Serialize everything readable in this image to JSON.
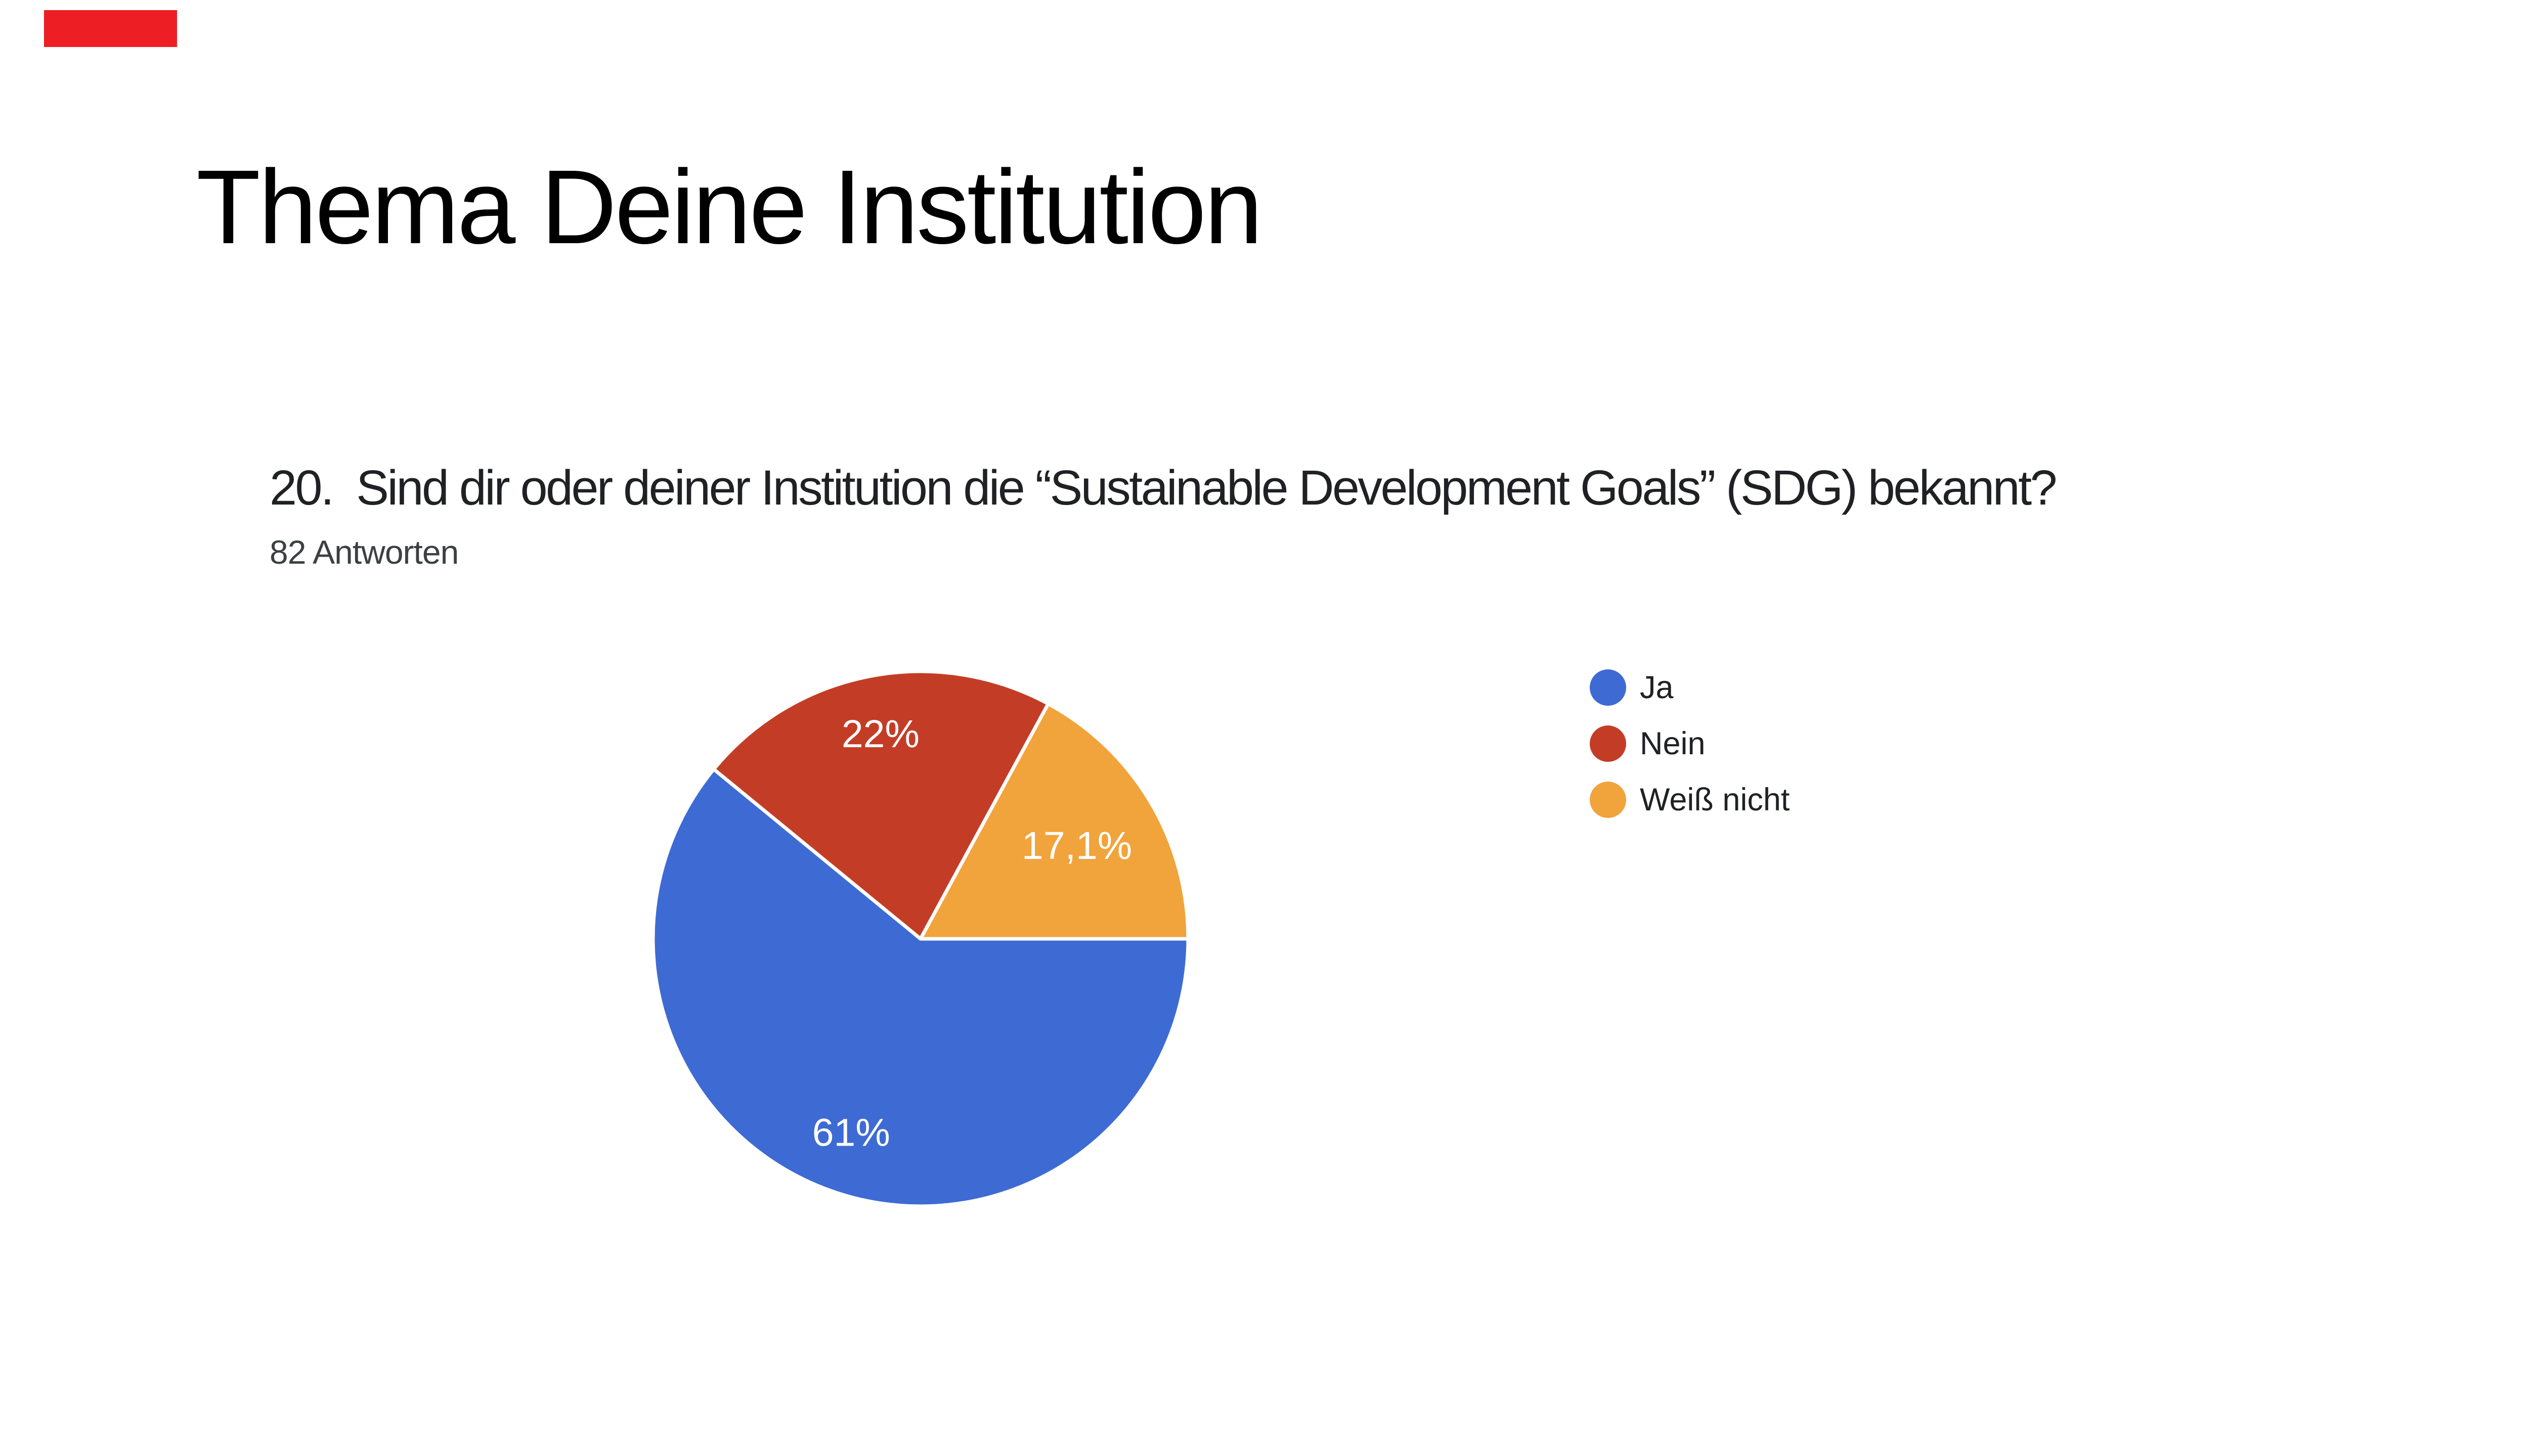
{
  "page": {
    "background": "#ffffff",
    "marker_color": "#ED1F24"
  },
  "slide": {
    "title": "Thema Deine Institution"
  },
  "survey": {
    "question": "20.  Sind dir oder deiner Institution die “Sustainable Development Goals” (SDG) bekannt?",
    "responses_label": "82 Antworten"
  },
  "chart_data": {
    "type": "pie",
    "title": "20.  Sind dir oder deiner Institution die “Sustainable Development Goals” (SDG) bekannt?",
    "subtitle": "82 Antworten",
    "categories": [
      "Ja",
      "Nein",
      "Weiß nicht"
    ],
    "values": [
      61,
      22,
      17.1
    ],
    "slice_labels": [
      "61%",
      "22%",
      "17,1%"
    ],
    "colors": [
      "#3E6BD3",
      "#C33D26",
      "#F1A33C"
    ],
    "start_angle_deg": 0,
    "direction": "clockwise",
    "legend_position": "right",
    "slice_border_color": "#ffffff"
  }
}
